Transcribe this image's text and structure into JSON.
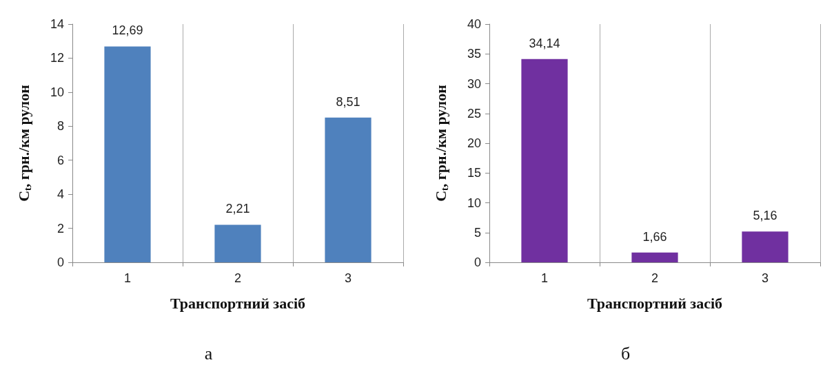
{
  "chart_data": [
    {
      "type": "bar",
      "categories": [
        "1",
        "2",
        "3"
      ],
      "values": [
        12.69,
        2.21,
        8.51
      ],
      "value_labels": [
        "12,69",
        "2,21",
        "8,51"
      ],
      "color": "#4f81bd",
      "xlabel": "Транспортний засіб",
      "ylabel": "C$_{t}$, грн./км рулон",
      "ylim": [
        0,
        14
      ],
      "yticks": [
        0,
        2,
        4,
        6,
        8,
        10,
        12,
        14
      ],
      "grid": "x",
      "annotations": [
        "а"
      ]
    },
    {
      "type": "bar",
      "categories": [
        "1",
        "2",
        "3"
      ],
      "values": [
        34.14,
        1.66,
        5.16
      ],
      "value_labels": [
        "34,14",
        "1,66",
        "5,16"
      ],
      "color": "#7030a0",
      "xlabel": "Транспортний засіб",
      "ylabel": "C$_{t}$, грн./км рулон",
      "ylim": [
        0,
        40
      ],
      "yticks": [
        0,
        5,
        10,
        15,
        20,
        25,
        30,
        35,
        40
      ],
      "grid": "x",
      "annotations": [
        "б"
      ]
    }
  ]
}
